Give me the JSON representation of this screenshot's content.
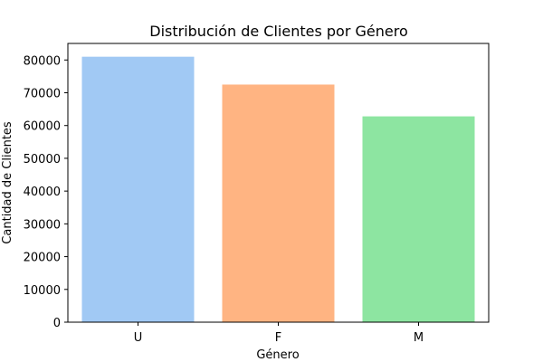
{
  "chart_data": {
    "type": "bar",
    "title": "Distribución de Clientes por Género",
    "xlabel": "Género",
    "ylabel": "Cantidad de Clientes",
    "categories": [
      "U",
      "F",
      "M"
    ],
    "values": [
      81000,
      72500,
      62800
    ],
    "colors": [
      "#a1c9f4",
      "#ffb482",
      "#8de5a1"
    ],
    "ylim": [
      0,
      85050
    ],
    "yticks": [
      0,
      10000,
      20000,
      30000,
      40000,
      50000,
      60000,
      70000,
      80000
    ],
    "grid": false,
    "legend": "none"
  }
}
